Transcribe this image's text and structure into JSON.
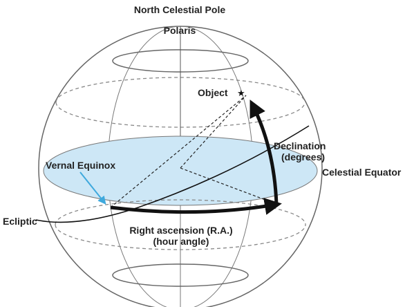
{
  "labels": {
    "north_pole": "North Celestial Pole",
    "polaris": "Polaris",
    "object": "Object",
    "declination": "Declination",
    "declination_unit": "(degrees)",
    "celestial_equator": "Celestial Equator",
    "vernal_equinox": "Vernal Equinox",
    "ecliptic": "Ecliptic",
    "right_ascension": "Right ascension (R.A.)",
    "right_ascension_unit": "(hour angle)"
  },
  "colors": {
    "equator_fill": "#cde7f6",
    "vernal_arrow": "#3fa9dd",
    "line": "#555555",
    "dashed": "#777777"
  }
}
